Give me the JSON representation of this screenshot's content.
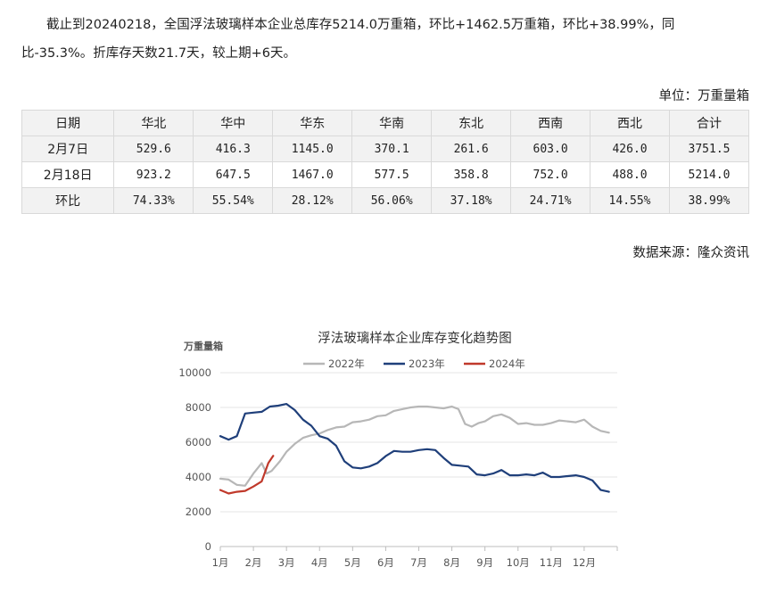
{
  "paragraph": "截止到20240218，全国浮法玻璃样本企业总库存5214.0万重箱，环比+1462.5万重箱，环比+38.99%，同比-35.3%。折库存天数21.7天，较上期+6天。",
  "unit_label": "单位：万重量箱",
  "table": {
    "headers": [
      "日期",
      "华北",
      "华中",
      "华东",
      "华南",
      "东北",
      "西南",
      "西北",
      "合计"
    ],
    "rows": [
      [
        "2月7日",
        "529.6",
        "416.3",
        "1145.0",
        "370.1",
        "261.6",
        "603.0",
        "426.0",
        "3751.5"
      ],
      [
        "2月18日",
        "923.2",
        "647.5",
        "1467.0",
        "577.5",
        "358.8",
        "752.0",
        "488.0",
        "5214.0"
      ],
      [
        "环比",
        "74.33%",
        "55.54%",
        "28.12%",
        "56.06%",
        "37.18%",
        "24.71%",
        "14.55%",
        "38.99%"
      ]
    ]
  },
  "source_label": "数据来源：隆众资讯",
  "chart_data": {
    "type": "line",
    "title": "浮法玻璃样本企业库存变化趋势图",
    "ylabel": "万重量箱",
    "ylim": [
      0,
      10000
    ],
    "yticks": [
      0,
      2000,
      4000,
      6000,
      8000,
      10000
    ],
    "xlim": [
      1,
      13
    ],
    "xticks": [
      "1月",
      "2月",
      "3月",
      "4月",
      "5月",
      "6月",
      "7月",
      "8月",
      "9月",
      "10月",
      "11月",
      "12月"
    ],
    "grid": true,
    "legend_position": "top",
    "series": [
      {
        "name": "2022年",
        "color": "#b7b7b7",
        "x": [
          1.0,
          1.25,
          1.5,
          1.75,
          2.0,
          2.25,
          2.4,
          2.55,
          2.8,
          3.0,
          3.25,
          3.5,
          3.75,
          4.0,
          4.25,
          4.5,
          4.75,
          5.0,
          5.25,
          5.5,
          5.75,
          6.0,
          6.25,
          6.5,
          6.75,
          7.0,
          7.25,
          7.5,
          7.75,
          8.0,
          8.2,
          8.4,
          8.6,
          8.8,
          9.0,
          9.25,
          9.5,
          9.75,
          10.0,
          10.25,
          10.5,
          10.75,
          11.0,
          11.25,
          11.5,
          11.75,
          12.0,
          12.25,
          12.5,
          12.75
        ],
        "values": [
          3900,
          3850,
          3550,
          3500,
          4200,
          4800,
          4200,
          4350,
          4900,
          5450,
          5900,
          6250,
          6400,
          6500,
          6700,
          6850,
          6900,
          7150,
          7200,
          7300,
          7500,
          7550,
          7800,
          7900,
          8000,
          8050,
          8050,
          8000,
          7950,
          8050,
          7900,
          7050,
          6900,
          7100,
          7200,
          7500,
          7600,
          7400,
          7050,
          7100,
          7000,
          7000,
          7100,
          7250,
          7200,
          7150,
          7300,
          6900,
          6650,
          6550
        ]
      },
      {
        "name": "2023年",
        "color": "#1f3f7a",
        "x": [
          1.0,
          1.25,
          1.5,
          1.75,
          2.0,
          2.25,
          2.5,
          2.75,
          3.0,
          3.25,
          3.5,
          3.75,
          4.0,
          4.25,
          4.5,
          4.75,
          5.0,
          5.25,
          5.5,
          5.75,
          6.0,
          6.25,
          6.5,
          6.75,
          7.0,
          7.25,
          7.5,
          7.75,
          8.0,
          8.25,
          8.5,
          8.75,
          9.0,
          9.25,
          9.5,
          9.75,
          10.0,
          10.25,
          10.5,
          10.75,
          11.0,
          11.25,
          11.5,
          11.75,
          12.0,
          12.25,
          12.5,
          12.75
        ],
        "values": [
          6350,
          6150,
          6350,
          7650,
          7700,
          7750,
          8050,
          8100,
          8200,
          7850,
          7300,
          6950,
          6350,
          6200,
          5800,
          4900,
          4550,
          4500,
          4600,
          4800,
          5200,
          5500,
          5450,
          5450,
          5550,
          5600,
          5550,
          5100,
          4700,
          4650,
          4600,
          4150,
          4100,
          4200,
          4400,
          4100,
          4100,
          4150,
          4100,
          4250,
          4000,
          4000,
          4050,
          4100,
          4000,
          3800,
          3250,
          3150
        ]
      },
      {
        "name": "2024年",
        "color": "#c0392b",
        "x": [
          1.0,
          1.25,
          1.5,
          1.75,
          2.0,
          2.25,
          2.45,
          2.6
        ],
        "values": [
          3250,
          3050,
          3150,
          3200,
          3450,
          3750,
          4800,
          5214
        ]
      }
    ]
  }
}
